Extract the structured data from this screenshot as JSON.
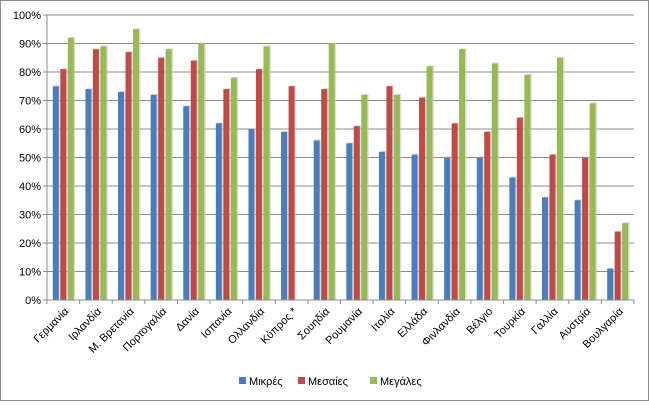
{
  "chart_data": {
    "type": "bar",
    "title": "",
    "xlabel": "",
    "ylabel": "",
    "ylim": [
      0,
      100
    ],
    "ytick_step": 10,
    "y_format": "percent",
    "grid": true,
    "legend_position": "bottom",
    "categories": [
      "Γερμανία",
      "Ιρλανδία",
      "Μ. Βρετανία",
      "Πορτογαλία",
      "Δανία",
      "Ισπανία",
      "Ολλανδία",
      "Κύπρος *",
      "Σουηδία",
      "Ρουμανία",
      "Ιταλία",
      "Ελλάδα",
      "Φινλανδία",
      "Βέλγιο",
      "Τουρκία",
      "Γαλλία",
      "Αυστρία",
      "Βουλγαρία"
    ],
    "series": [
      {
        "name": "Μικρές",
        "color": "#4a7ebb",
        "values": [
          75,
          74,
          73,
          72,
          68,
          62,
          60,
          59,
          56,
          55,
          52,
          51,
          50,
          50,
          43,
          36,
          35,
          11
        ]
      },
      {
        "name": "Μεσαίες",
        "color": "#be4b48",
        "values": [
          81,
          88,
          87,
          85,
          84,
          74,
          81,
          75,
          74,
          61,
          75,
          71,
          62,
          59,
          64,
          51,
          50,
          24
        ]
      },
      {
        "name": "Μεγάλες",
        "color": "#98b954",
        "values": [
          92,
          89,
          95,
          88,
          90,
          78,
          89,
          null,
          90,
          72,
          72,
          82,
          88,
          83,
          79,
          85,
          69,
          27
        ]
      }
    ]
  }
}
